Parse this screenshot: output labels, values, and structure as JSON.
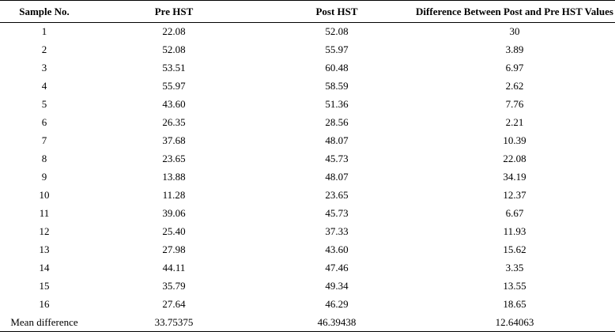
{
  "table": {
    "headers": [
      "Sample No.",
      "Pre HST",
      "Post HST",
      "Difference Between Post and Pre HST Values"
    ],
    "rows": [
      [
        "1",
        "22.08",
        "52.08",
        "30"
      ],
      [
        "2",
        "52.08",
        "55.97",
        "3.89"
      ],
      [
        "3",
        "53.51",
        "60.48",
        "6.97"
      ],
      [
        "4",
        "55.97",
        "58.59",
        "2.62"
      ],
      [
        "5",
        "43.60",
        "51.36",
        "7.76"
      ],
      [
        "6",
        "26.35",
        "28.56",
        "2.21"
      ],
      [
        "7",
        "37.68",
        "48.07",
        "10.39"
      ],
      [
        "8",
        "23.65",
        "45.73",
        "22.08"
      ],
      [
        "9",
        "13.88",
        "48.07",
        "34.19"
      ],
      [
        "10",
        "11.28",
        "23.65",
        "12.37"
      ],
      [
        "11",
        "39.06",
        "45.73",
        "6.67"
      ],
      [
        "12",
        "25.40",
        "37.33",
        "11.93"
      ],
      [
        "13",
        "27.98",
        "43.60",
        "15.62"
      ],
      [
        "14",
        "44.11",
        "47.46",
        "3.35"
      ],
      [
        "15",
        "35.79",
        "49.34",
        "13.55"
      ],
      [
        "16",
        "27.64",
        "46.29",
        "18.65"
      ],
      [
        "Mean difference",
        "33.75375",
        "46.39438",
        "12.64063"
      ]
    ]
  }
}
